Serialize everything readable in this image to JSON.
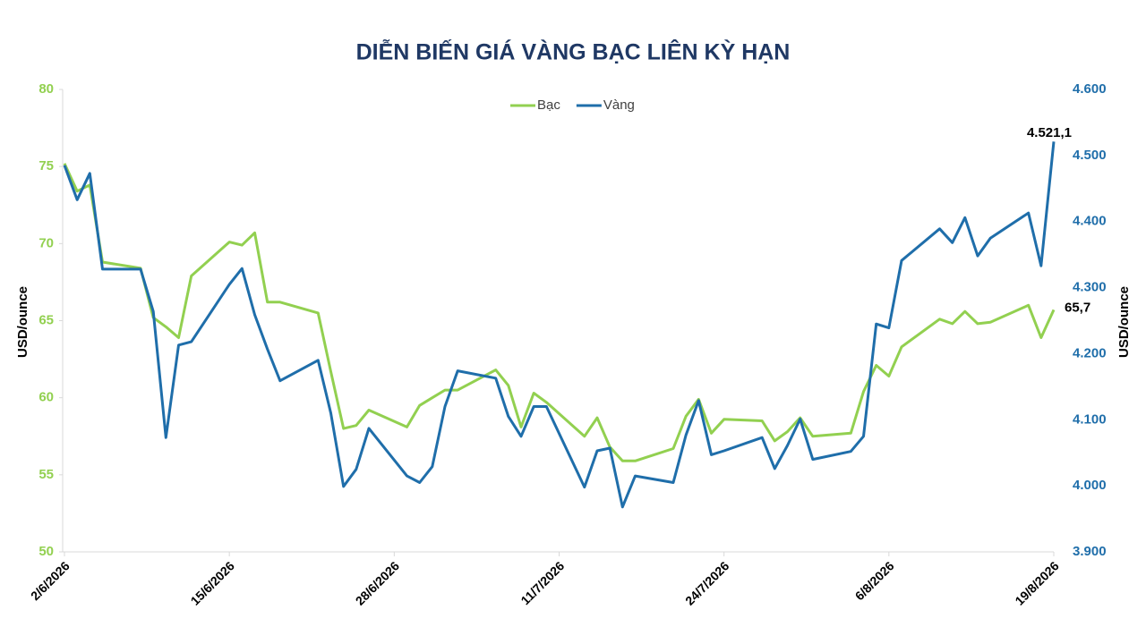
{
  "chart_data": {
    "type": "line",
    "title": "DIỄN BIẾN GIÁ VÀNG BẠC LIÊN KỲ HẠN",
    "y_label": "USD/ounce",
    "y2_label": "USD/ounce",
    "x": [
      "2/6/2026",
      "3/6/2026",
      "4/6/2026",
      "5/6/2026",
      "8/6/2026",
      "9/6/2026",
      "10/6/2026",
      "11/6/2026",
      "12/6/2026",
      "15/6/2026",
      "16/6/2026",
      "17/6/2026",
      "18/6/2026",
      "19/6/2026",
      "22/6/2026",
      "23/6/2026",
      "24/6/2026",
      "25/6/2026",
      "26/6/2026",
      "29/6/2026",
      "30/6/2026",
      "1/7/2026",
      "2/7/2026",
      "3/7/2026",
      "6/7/2026",
      "7/7/2026",
      "8/7/2026",
      "9/7/2026",
      "10/7/2026",
      "13/7/2026",
      "14/7/2026",
      "15/7/2026",
      "16/7/2026",
      "17/7/2026",
      "20/7/2026",
      "21/7/2026",
      "22/7/2026",
      "23/7/2026",
      "24/7/2026",
      "27/7/2026",
      "28/7/2026",
      "29/7/2026",
      "30/7/2026",
      "31/7/2026",
      "3/8/2026",
      "4/8/2026",
      "5/8/2026",
      "6/8/2026",
      "7/8/2026",
      "10/8/2026",
      "11/8/2026",
      "12/8/2026",
      "13/8/2026",
      "14/8/2026",
      "17/8/2026",
      "18/8/2026",
      "19/8/2026"
    ],
    "xlim": [
      "2/6/2026",
      "19/8/2026"
    ],
    "xticks": [
      "2/6/2026",
      "15/6/2026",
      "28/6/2026",
      "11/7/2026",
      "24/7/2026",
      "6/8/2026",
      "19/8/2026"
    ],
    "ylim": [
      50,
      80
    ],
    "yticks": [
      50,
      55,
      60,
      65,
      70,
      75,
      80
    ],
    "y2lim": [
      3900,
      4600
    ],
    "y2ticks": [
      {
        "value": 3900,
        "label": "3.900"
      },
      {
        "value": 4000,
        "label": "4.000"
      },
      {
        "value": 4100,
        "label": "4.100"
      },
      {
        "value": 4200,
        "label": "4.200"
      },
      {
        "value": 4300,
        "label": "4.300"
      },
      {
        "value": 4400,
        "label": "4.400"
      },
      {
        "value": 4500,
        "label": "4.500"
      },
      {
        "value": 4600,
        "label": "4.600"
      }
    ],
    "legend": "top",
    "series": [
      {
        "name": "Bạc",
        "color": "#92d050",
        "values": [
          75.2,
          73.4,
          73.8,
          68.8,
          68.4,
          65.2,
          64.6,
          63.9,
          67.9,
          70.1,
          69.9,
          70.7,
          66.2,
          66.2,
          65.5,
          61.7,
          58.0,
          58.2,
          59.2,
          58.1,
          59.5,
          60.0,
          60.5,
          60.5,
          61.8,
          60.8,
          58.1,
          60.3,
          59.7,
          57.5,
          58.7,
          56.8,
          55.9,
          55.9,
          56.7,
          58.8,
          59.9,
          57.7,
          58.6,
          58.5,
          57.2,
          57.8,
          58.7,
          57.5,
          57.7,
          60.4,
          62.1,
          61.4,
          63.3,
          65.1,
          64.8,
          65.6,
          64.8,
          64.9,
          66.0,
          63.9,
          65.7
        ],
        "value_labels": [
          null,
          null,
          null,
          null,
          null,
          null,
          null,
          null,
          null,
          null,
          null,
          null,
          null,
          null,
          null,
          null,
          null,
          null,
          null,
          null,
          null,
          null,
          null,
          null,
          null,
          null,
          null,
          null,
          null,
          null,
          null,
          null,
          null,
          null,
          null,
          null,
          null,
          null,
          null,
          null,
          null,
          null,
          null,
          null,
          null,
          null,
          null,
          null,
          null,
          null,
          null,
          null,
          null,
          null,
          null,
          null,
          "65,7"
        ]
      },
      {
        "name": "Vàng",
        "color": "#1f6eaa",
        "axis": "y2",
        "values": [
          4485,
          4433,
          4473,
          4328,
          4328,
          4264,
          4073,
          4213,
          4218,
          4305,
          4329,
          4259,
          4207,
          4159,
          4190,
          4110,
          3999,
          4025,
          4087,
          4015,
          4005,
          4029,
          4120,
          4174,
          4163,
          4105,
          4075,
          4120,
          4120,
          3998,
          4053,
          4057,
          3968,
          4015,
          4005,
          4077,
          4129,
          4047,
          4053,
          4073,
          4026,
          4061,
          4101,
          4040,
          4052,
          4075,
          4245,
          4239,
          4341,
          4389,
          4368,
          4406,
          4348,
          4375,
          4413,
          4333,
          4521.1
        ],
        "value_labels": [
          null,
          null,
          null,
          null,
          null,
          null,
          null,
          null,
          null,
          null,
          null,
          null,
          null,
          null,
          null,
          null,
          null,
          null,
          null,
          null,
          null,
          null,
          null,
          null,
          null,
          null,
          null,
          null,
          null,
          null,
          null,
          null,
          null,
          null,
          null,
          null,
          null,
          null,
          null,
          null,
          null,
          null,
          null,
          null,
          null,
          null,
          null,
          null,
          null,
          null,
          null,
          null,
          null,
          null,
          null,
          null,
          "4.521,1"
        ]
      }
    ]
  }
}
